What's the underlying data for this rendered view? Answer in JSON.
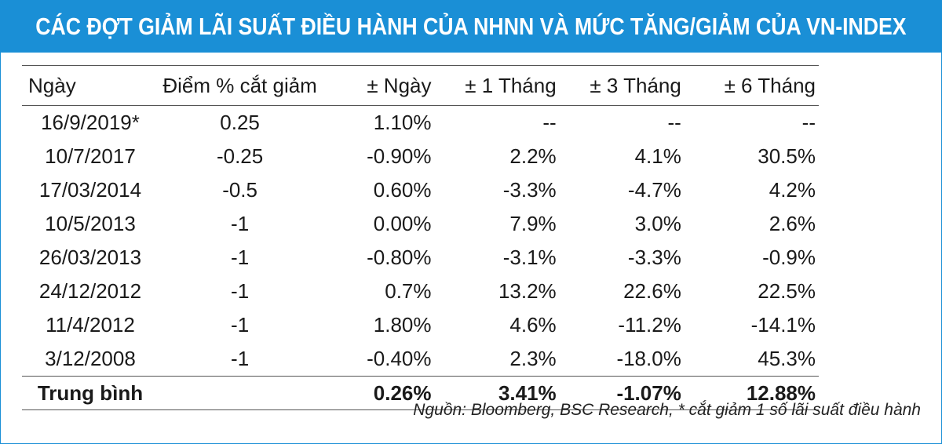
{
  "title": "CÁC ĐỢT GIẢM LÃI SUẤT ĐIỀU HÀNH CỦA NHNN VÀ MỨC TĂNG/GIẢM CỦA VN-INDEX",
  "colors": {
    "accent": "#1a8fd6",
    "title_text": "#ffffff"
  },
  "table": {
    "headers": [
      "Ngày",
      "Điểm % cắt giảm",
      "± Ngày",
      "±  1 Tháng",
      "±  3 Tháng",
      "±  6 Tháng"
    ],
    "rows": [
      [
        "16/9/2019*",
        "0.25",
        "1.10%",
        "--",
        "--",
        "--"
      ],
      [
        "10/7/2017",
        "-0.25",
        "-0.90%",
        "2.2%",
        "4.1%",
        "30.5%"
      ],
      [
        "17/03/2014",
        "-0.5",
        "0.60%",
        "-3.3%",
        "-4.7%",
        "4.2%"
      ],
      [
        "10/5/2013",
        "-1",
        "0.00%",
        "7.9%",
        "3.0%",
        "2.6%"
      ],
      [
        "26/03/2013",
        "-1",
        "-0.80%",
        "-3.1%",
        "-3.3%",
        "-0.9%"
      ],
      [
        "24/12/2012",
        "-1",
        "0.7%",
        "13.2%",
        "22.6%",
        "22.5%"
      ],
      [
        "11/4/2012",
        "-1",
        "1.80%",
        "4.6%",
        "-11.2%",
        "-14.1%"
      ],
      [
        "3/12/2008",
        "-1",
        "-0.40%",
        "2.3%",
        "-18.0%",
        "45.3%"
      ]
    ],
    "average": [
      "Trung bình",
      "",
      "0.26%",
      "3.41%",
      "-1.07%",
      "12.88%"
    ]
  },
  "source": "Nguồn: Bloomberg, BSC Research, * cắt giảm 1 số lãi suất điều hành"
}
